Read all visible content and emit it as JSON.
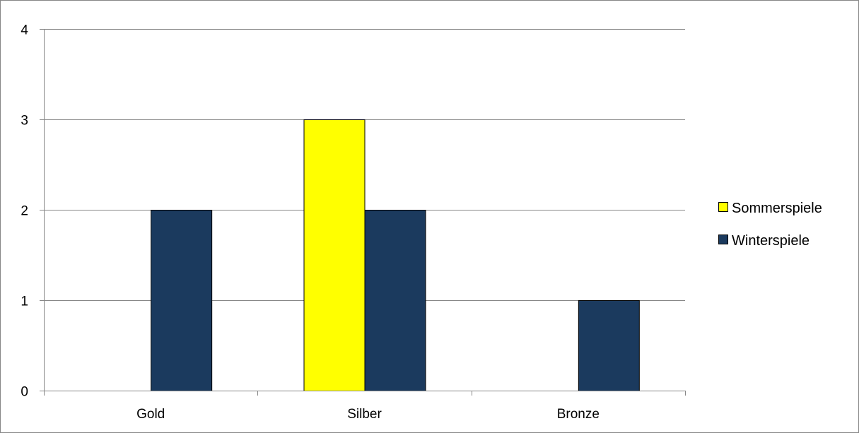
{
  "chart_data": {
    "type": "bar",
    "categories": [
      "Gold",
      "Silber",
      "Bronze"
    ],
    "series": [
      {
        "name": "Sommerspiele",
        "values": [
          0,
          3,
          0
        ],
        "color": "#FFFF00"
      },
      {
        "name": "Winterspiele",
        "values": [
          2,
          2,
          1
        ],
        "color": "#1B3A5E"
      }
    ],
    "ylim": [
      0,
      4
    ],
    "yticks": [
      0,
      1,
      2,
      3,
      4
    ],
    "grid": true,
    "legend": "right",
    "title": "",
    "xlabel": "",
    "ylabel": ""
  }
}
